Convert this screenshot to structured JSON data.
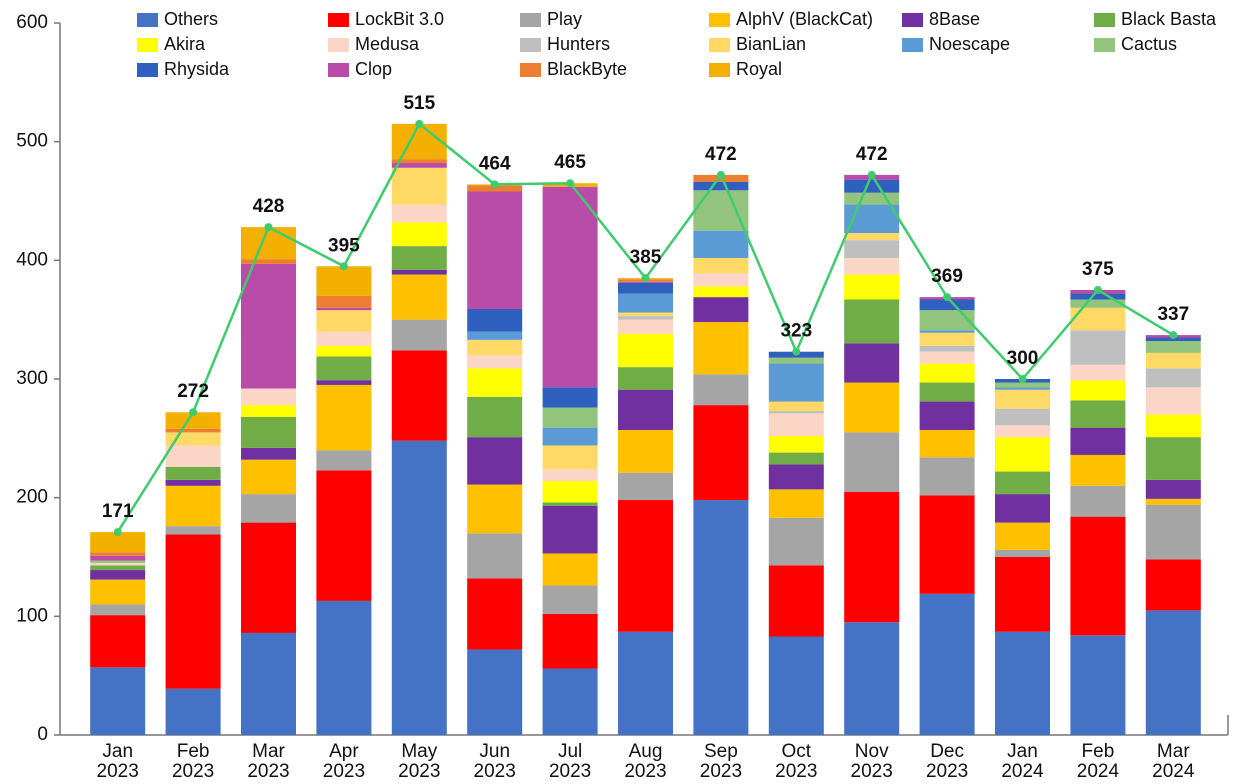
{
  "chart_data": {
    "type": "bar",
    "stacked": true,
    "categories": [
      [
        "Jan",
        "2023"
      ],
      [
        "Feb",
        "2023"
      ],
      [
        "Mar",
        "2023"
      ],
      [
        "Apr",
        "2023"
      ],
      [
        "May",
        "2023"
      ],
      [
        "Jun",
        "2023"
      ],
      [
        "Jul",
        "2023"
      ],
      [
        "Aug",
        "2023"
      ],
      [
        "Sep",
        "2023"
      ],
      [
        "Oct",
        "2023"
      ],
      [
        "Nov",
        "2023"
      ],
      [
        "Dec",
        "2023"
      ],
      [
        "Jan",
        "2024"
      ],
      [
        "Feb",
        "2024"
      ],
      [
        "Mar",
        "2024"
      ]
    ],
    "ylim": [
      0,
      600
    ],
    "yticks": [
      0,
      100,
      200,
      300,
      400,
      500,
      600
    ],
    "grid": false,
    "series": [
      {
        "name": "Others",
        "color": "#4472c4",
        "values": [
          57,
          39,
          86,
          113,
          248,
          72,
          56,
          87,
          198,
          83,
          95,
          119,
          87,
          84,
          105
        ]
      },
      {
        "name": "LockBit 3.0",
        "color": "#ff0000",
        "values": [
          44,
          130,
          93,
          110,
          76,
          60,
          46,
          111,
          80,
          60,
          110,
          83,
          63,
          100,
          43
        ]
      },
      {
        "name": "Play",
        "color": "#a5a5a5",
        "values": [
          9,
          7,
          24,
          17,
          26,
          38,
          24,
          23,
          26,
          40,
          50,
          32,
          6,
          26,
          46
        ]
      },
      {
        "name": "AlphV (BlackCat)",
        "color": "#ffc000",
        "values": [
          21,
          34,
          29,
          55,
          38,
          41,
          27,
          36,
          44,
          24,
          42,
          23,
          23,
          26,
          5
        ]
      },
      {
        "name": "8Base",
        "color": "#7030a0",
        "values": [
          8,
          5,
          10,
          4,
          4,
          40,
          40,
          34,
          21,
          21,
          33,
          24,
          24,
          23,
          16
        ]
      },
      {
        "name": "Black Basta",
        "color": "#70ad47",
        "values": [
          4,
          11,
          26,
          20,
          20,
          34,
          3,
          19,
          0,
          10,
          37,
          16,
          19,
          23,
          36
        ]
      },
      {
        "name": "Akira",
        "color": "#ffff00",
        "values": [
          0,
          0,
          10,
          9,
          20,
          24,
          18,
          28,
          9,
          14,
          21,
          16,
          29,
          17,
          19
        ]
      },
      {
        "name": "Medusa",
        "color": "#fbd5c5",
        "values": [
          2,
          18,
          14,
          12,
          15,
          11,
          10,
          12,
          11,
          19,
          14,
          10,
          10,
          13,
          23
        ]
      },
      {
        "name": "Hunters",
        "color": "#bfbfbf",
        "values": [
          0,
          0,
          0,
          0,
          0,
          0,
          0,
          3,
          0,
          2,
          15,
          5,
          14,
          29,
          16
        ]
      },
      {
        "name": "BianLian",
        "color": "#ffd966",
        "values": [
          0,
          11,
          0,
          18,
          31,
          13,
          20,
          3,
          13,
          8,
          6,
          11,
          16,
          19,
          13
        ]
      },
      {
        "name": "Noescape",
        "color": "#5b9bd5",
        "values": [
          0,
          0,
          0,
          0,
          0,
          7,
          15,
          16,
          23,
          32,
          24,
          2,
          2,
          0,
          0
        ]
      },
      {
        "name": "Cactus",
        "color": "#93c47d",
        "values": [
          2,
          0,
          0,
          0,
          0,
          0,
          17,
          0,
          34,
          5,
          10,
          17,
          4,
          7,
          10
        ]
      },
      {
        "name": "Rhysida",
        "color": "#2f5fbf",
        "values": [
          0,
          0,
          0,
          0,
          0,
          19,
          17,
          9,
          7,
          5,
          11,
          9,
          3,
          5,
          3
        ]
      },
      {
        "name": "Clop",
        "color": "#b84ca8",
        "values": [
          4,
          0,
          105,
          2,
          4,
          99,
          169,
          1,
          0,
          0,
          4,
          2,
          0,
          3,
          2
        ]
      },
      {
        "name": "BlackByte",
        "color": "#ed7d31",
        "values": [
          3,
          3,
          4,
          10,
          3,
          5,
          0,
          2,
          6,
          0,
          0,
          0,
          0,
          0,
          0
        ]
      },
      {
        "name": "Royal",
        "color": "#f4b000",
        "values": [
          17,
          14,
          27,
          25,
          30,
          1,
          3,
          1,
          0,
          0,
          0,
          0,
          0,
          0,
          0
        ]
      }
    ],
    "totals": {
      "color": "#3ecb6e",
      "values": [
        171,
        272,
        428,
        395,
        515,
        464,
        465,
        385,
        472,
        323,
        472,
        369,
        300,
        375,
        337
      ]
    }
  }
}
